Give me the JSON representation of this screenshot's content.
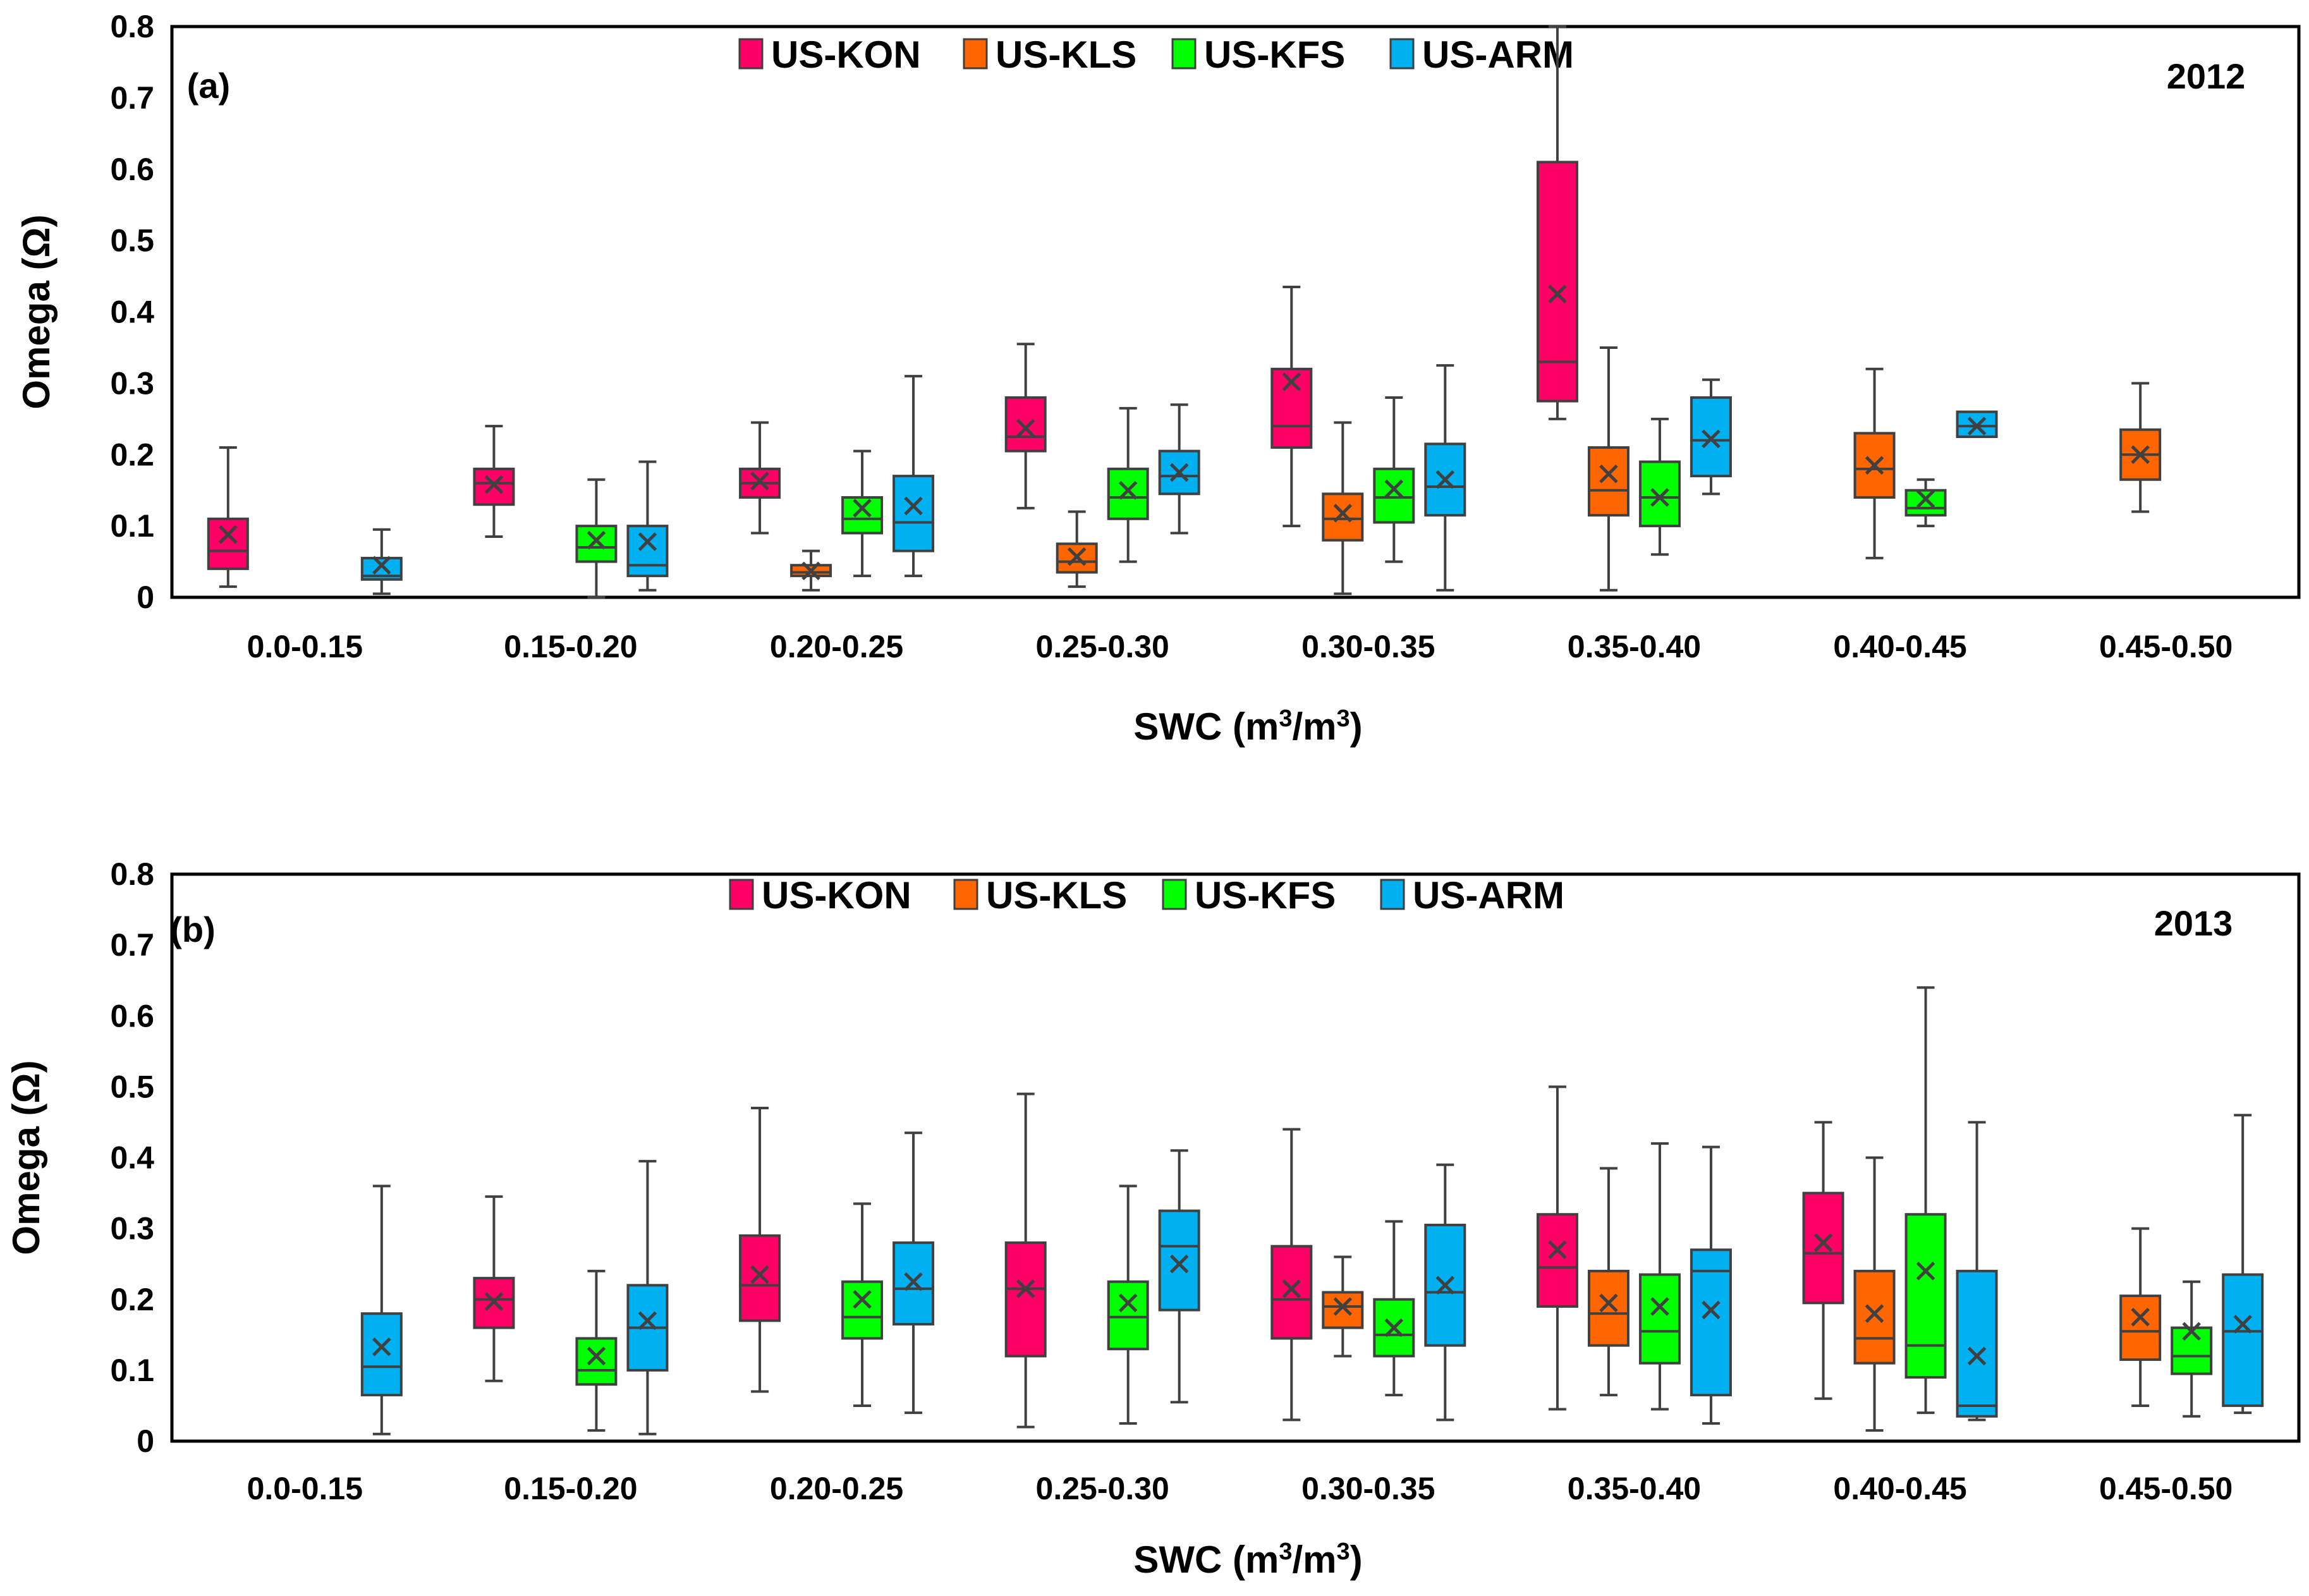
{
  "chart_data": [
    {
      "type": "box",
      "panel_label": "(a)",
      "year_label": "2012",
      "xlabel": "SWC (m³/m³)",
      "xlabel_parts": {
        "pre": "SWC (m",
        "sup1": "3",
        "mid": "/m",
        "sup2": "3",
        "post": ")"
      },
      "ylabel": "Omega (Ω)",
      "ylim": [
        0,
        0.8
      ],
      "yticks": [
        "0",
        "0.1",
        "0.2",
        "0.3",
        "0.4",
        "0.5",
        "0.6",
        "0.7",
        "0.8"
      ],
      "legend_position": "top-center",
      "categories": [
        "0.0-0.15",
        "0.15-0.20",
        "0.20-0.25",
        "0.25-0.30",
        "0.30-0.35",
        "0.35-0.40",
        "0.40-0.45",
        "0.45-0.50"
      ],
      "series": [
        {
          "name": "US-KON",
          "color": "#FF0066",
          "boxes": [
            {
              "min": 0.015,
              "q1": 0.04,
              "median": 0.065,
              "q3": 0.11,
              "max": 0.21,
              "mean": 0.088
            },
            {
              "min": 0.085,
              "q1": 0.13,
              "median": 0.16,
              "q3": 0.18,
              "max": 0.24,
              "mean": 0.158
            },
            {
              "min": 0.09,
              "q1": 0.14,
              "median": 0.16,
              "q3": 0.18,
              "max": 0.245,
              "mean": 0.163
            },
            {
              "min": 0.125,
              "q1": 0.205,
              "median": 0.225,
              "q3": 0.28,
              "max": 0.355,
              "mean": 0.237
            },
            {
              "min": 0.1,
              "q1": 0.21,
              "median": 0.24,
              "q3": 0.32,
              "max": 0.435,
              "mean": 0.302
            },
            {
              "min": 0.25,
              "q1": 0.275,
              "median": 0.33,
              "q3": 0.61,
              "max": 0.8,
              "mean": 0.425
            },
            null,
            null
          ]
        },
        {
          "name": "US-KLS",
          "color": "#FF6600",
          "boxes": [
            null,
            null,
            {
              "min": 0.01,
              "q1": 0.03,
              "median": 0.035,
              "q3": 0.045,
              "max": 0.065,
              "mean": 0.037
            },
            {
              "min": 0.015,
              "q1": 0.035,
              "median": 0.05,
              "q3": 0.075,
              "max": 0.12,
              "mean": 0.057
            },
            {
              "min": 0.005,
              "q1": 0.08,
              "median": 0.11,
              "q3": 0.145,
              "max": 0.245,
              "mean": 0.118
            },
            {
              "min": 0.01,
              "q1": 0.115,
              "median": 0.15,
              "q3": 0.21,
              "max": 0.35,
              "mean": 0.173
            },
            {
              "min": 0.055,
              "q1": 0.14,
              "median": 0.18,
              "q3": 0.23,
              "max": 0.32,
              "mean": 0.185
            },
            {
              "min": 0.12,
              "q1": 0.165,
              "median": 0.2,
              "q3": 0.235,
              "max": 0.3,
              "mean": 0.2
            }
          ]
        },
        {
          "name": "US-KFS",
          "color": "#00FF00",
          "boxes": [
            null,
            {
              "min": 0.0,
              "q1": 0.05,
              "median": 0.07,
              "q3": 0.1,
              "max": 0.165,
              "mean": 0.08
            },
            {
              "min": 0.03,
              "q1": 0.09,
              "median": 0.11,
              "q3": 0.14,
              "max": 0.205,
              "mean": 0.125
            },
            {
              "min": 0.05,
              "q1": 0.11,
              "median": 0.14,
              "q3": 0.18,
              "max": 0.265,
              "mean": 0.15
            },
            {
              "min": 0.05,
              "q1": 0.105,
              "median": 0.14,
              "q3": 0.18,
              "max": 0.28,
              "mean": 0.152
            },
            {
              "min": 0.06,
              "q1": 0.1,
              "median": 0.14,
              "q3": 0.19,
              "max": 0.25,
              "mean": 0.14
            },
            {
              "min": 0.1,
              "q1": 0.115,
              "median": 0.125,
              "q3": 0.15,
              "max": 0.165,
              "mean": 0.138
            },
            null
          ]
        },
        {
          "name": "US-ARM",
          "color": "#00B0F0",
          "boxes": [
            {
              "min": 0.005,
              "q1": 0.025,
              "median": 0.03,
              "q3": 0.055,
              "max": 0.095,
              "mean": 0.045
            },
            {
              "min": 0.01,
              "q1": 0.03,
              "median": 0.045,
              "q3": 0.1,
              "max": 0.19,
              "mean": 0.078
            },
            {
              "min": 0.03,
              "q1": 0.065,
              "median": 0.105,
              "q3": 0.17,
              "max": 0.31,
              "mean": 0.128
            },
            {
              "min": 0.09,
              "q1": 0.145,
              "median": 0.17,
              "q3": 0.205,
              "max": 0.27,
              "mean": 0.175
            },
            {
              "min": 0.01,
              "q1": 0.115,
              "median": 0.155,
              "q3": 0.215,
              "max": 0.325,
              "mean": 0.165
            },
            {
              "min": 0.145,
              "q1": 0.17,
              "median": 0.22,
              "q3": 0.28,
              "max": 0.305,
              "mean": 0.222
            },
            {
              "min": 0.225,
              "q1": 0.225,
              "median": 0.24,
              "q3": 0.26,
              "max": 0.26,
              "mean": 0.24
            },
            null
          ]
        }
      ]
    },
    {
      "type": "box",
      "panel_label": "(b)",
      "year_label": "2013",
      "xlabel": "SWC (m³/m³)",
      "xlabel_parts": {
        "pre": "SWC (m",
        "sup1": "3",
        "mid": "/m",
        "sup2": "3",
        "post": ")"
      },
      "ylabel": "Omega (Ω)",
      "ylim": [
        0,
        0.8
      ],
      "yticks": [
        "0",
        "0.1",
        "0.2",
        "0.3",
        "0.4",
        "0.5",
        "0.6",
        "0.7",
        "0.8"
      ],
      "legend_position": "top-center",
      "categories": [
        "0.0-0.15",
        "0.15-0.20",
        "0.20-0.25",
        "0.25-0.30",
        "0.30-0.35",
        "0.35-0.40",
        "0.40-0.45",
        "0.45-0.50"
      ],
      "series": [
        {
          "name": "US-KON",
          "color": "#FF0066",
          "boxes": [
            null,
            {
              "min": 0.085,
              "q1": 0.16,
              "median": 0.2,
              "q3": 0.23,
              "max": 0.345,
              "mean": 0.197
            },
            {
              "min": 0.07,
              "q1": 0.17,
              "median": 0.22,
              "q3": 0.29,
              "max": 0.47,
              "mean": 0.235
            },
            {
              "min": 0.02,
              "q1": 0.12,
              "median": 0.215,
              "q3": 0.28,
              "max": 0.49,
              "mean": 0.215
            },
            {
              "min": 0.03,
              "q1": 0.145,
              "median": 0.2,
              "q3": 0.275,
              "max": 0.44,
              "mean": 0.215
            },
            {
              "min": 0.045,
              "q1": 0.19,
              "median": 0.245,
              "q3": 0.32,
              "max": 0.5,
              "mean": 0.27
            },
            {
              "min": 0.06,
              "q1": 0.195,
              "median": 0.265,
              "q3": 0.35,
              "max": 0.45,
              "mean": 0.28
            },
            null
          ]
        },
        {
          "name": "US-KLS",
          "color": "#FF6600",
          "boxes": [
            null,
            null,
            null,
            null,
            {
              "min": 0.12,
              "q1": 0.16,
              "median": 0.19,
              "q3": 0.21,
              "max": 0.26,
              "mean": 0.19
            },
            {
              "min": 0.065,
              "q1": 0.135,
              "median": 0.18,
              "q3": 0.24,
              "max": 0.385,
              "mean": 0.195
            },
            {
              "min": 0.015,
              "q1": 0.11,
              "median": 0.145,
              "q3": 0.24,
              "max": 0.4,
              "mean": 0.18
            },
            {
              "min": 0.05,
              "q1": 0.115,
              "median": 0.155,
              "q3": 0.205,
              "max": 0.3,
              "mean": 0.175
            }
          ]
        },
        {
          "name": "US-KFS",
          "color": "#00FF00",
          "boxes": [
            null,
            {
              "min": 0.015,
              "q1": 0.08,
              "median": 0.1,
              "q3": 0.145,
              "max": 0.24,
              "mean": 0.12
            },
            {
              "min": 0.05,
              "q1": 0.145,
              "median": 0.175,
              "q3": 0.225,
              "max": 0.335,
              "mean": 0.2
            },
            {
              "min": 0.025,
              "q1": 0.13,
              "median": 0.175,
              "q3": 0.225,
              "max": 0.36,
              "mean": 0.195
            },
            {
              "min": 0.065,
              "q1": 0.12,
              "median": 0.15,
              "q3": 0.2,
              "max": 0.31,
              "mean": 0.16
            },
            {
              "min": 0.045,
              "q1": 0.11,
              "median": 0.155,
              "q3": 0.235,
              "max": 0.42,
              "mean": 0.19
            },
            {
              "min": 0.04,
              "q1": 0.09,
              "median": 0.135,
              "q3": 0.32,
              "max": 0.64,
              "mean": 0.24
            },
            {
              "min": 0.035,
              "q1": 0.095,
              "median": 0.12,
              "q3": 0.16,
              "max": 0.225,
              "mean": 0.155
            }
          ]
        },
        {
          "name": "US-ARM",
          "color": "#00B0F0",
          "boxes": [
            {
              "min": 0.01,
              "q1": 0.065,
              "median": 0.105,
              "q3": 0.18,
              "max": 0.36,
              "mean": 0.133
            },
            {
              "min": 0.01,
              "q1": 0.1,
              "median": 0.16,
              "q3": 0.22,
              "max": 0.395,
              "mean": 0.17
            },
            {
              "min": 0.04,
              "q1": 0.165,
              "median": 0.215,
              "q3": 0.28,
              "max": 0.435,
              "mean": 0.225
            },
            {
              "min": 0.055,
              "q1": 0.185,
              "median": 0.275,
              "q3": 0.325,
              "max": 0.41,
              "mean": 0.25
            },
            {
              "min": 0.03,
              "q1": 0.135,
              "median": 0.21,
              "q3": 0.305,
              "max": 0.39,
              "mean": 0.22
            },
            {
              "min": 0.025,
              "q1": 0.065,
              "median": 0.24,
              "q3": 0.27,
              "max": 0.415,
              "mean": 0.185
            },
            {
              "min": 0.03,
              "q1": 0.035,
              "median": 0.05,
              "q3": 0.24,
              "max": 0.45,
              "mean": 0.12
            },
            {
              "min": 0.04,
              "q1": 0.05,
              "median": 0.155,
              "q3": 0.235,
              "max": 0.46,
              "mean": 0.165
            }
          ]
        }
      ]
    }
  ]
}
